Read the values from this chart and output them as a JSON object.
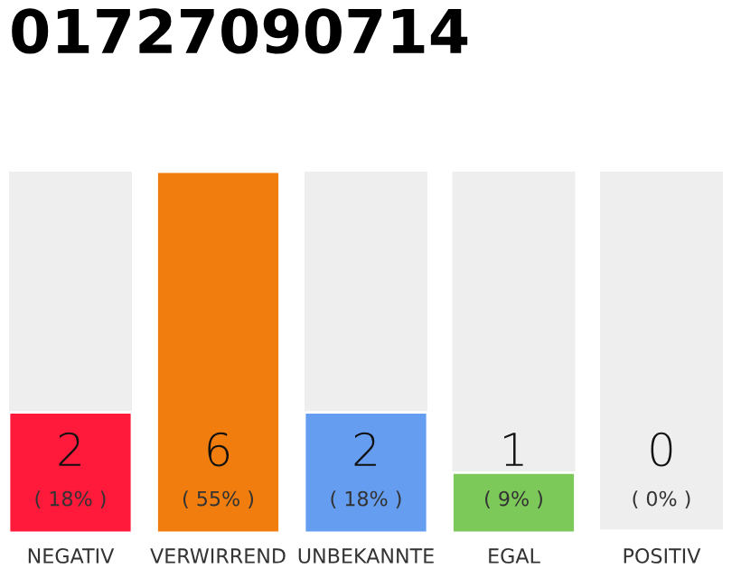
{
  "chart_data": {
    "type": "bar",
    "title": "01727090714",
    "categories": [
      "NEGATIV",
      "VERWIRREND",
      "UNBEKANNTE",
      "EGAL",
      "POSITIV"
    ],
    "values": [
      2,
      6,
      2,
      1,
      0
    ],
    "colors": [
      "#ff1a3c",
      "#f07d0d",
      "#659ef0",
      "#7cc95a",
      "#2daa4a"
    ],
    "value_labels": [
      "2\n( 18% )",
      "6\n( 55% )",
      "2\n( 18% )",
      "1\n( 9% )",
      "0\n( 0% )"
    ],
    "grid": false,
    "legend": false
  }
}
